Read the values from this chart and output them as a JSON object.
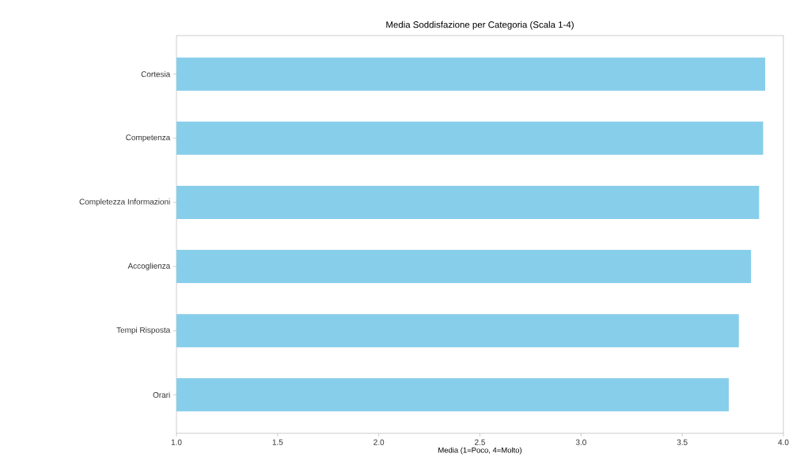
{
  "chart_data": {
    "type": "bar",
    "orientation": "horizontal",
    "title": "Media Soddisfazione per Categoria (Scala 1-4)",
    "xlabel": "Media (1=Poco, 4=Molto)",
    "categories": [
      "Cortesia",
      "Competenza",
      "Completezza Informazioni",
      "Accoglienza",
      "Tempi Risposta",
      "Orari"
    ],
    "values": [
      3.91,
      3.9,
      3.88,
      3.84,
      3.78,
      3.73
    ],
    "color": "#87ceeb",
    "xlim": [
      1.0,
      4.0
    ],
    "xticks": [
      {
        "value": 1.0,
        "label": "1.0"
      },
      1.5,
      {
        "value": 2.0,
        "label": "2.0"
      },
      2.5,
      {
        "value": 3.0,
        "label": "3.0"
      },
      3.5,
      {
        "value": 4.0,
        "label": "4.0"
      }
    ]
  }
}
